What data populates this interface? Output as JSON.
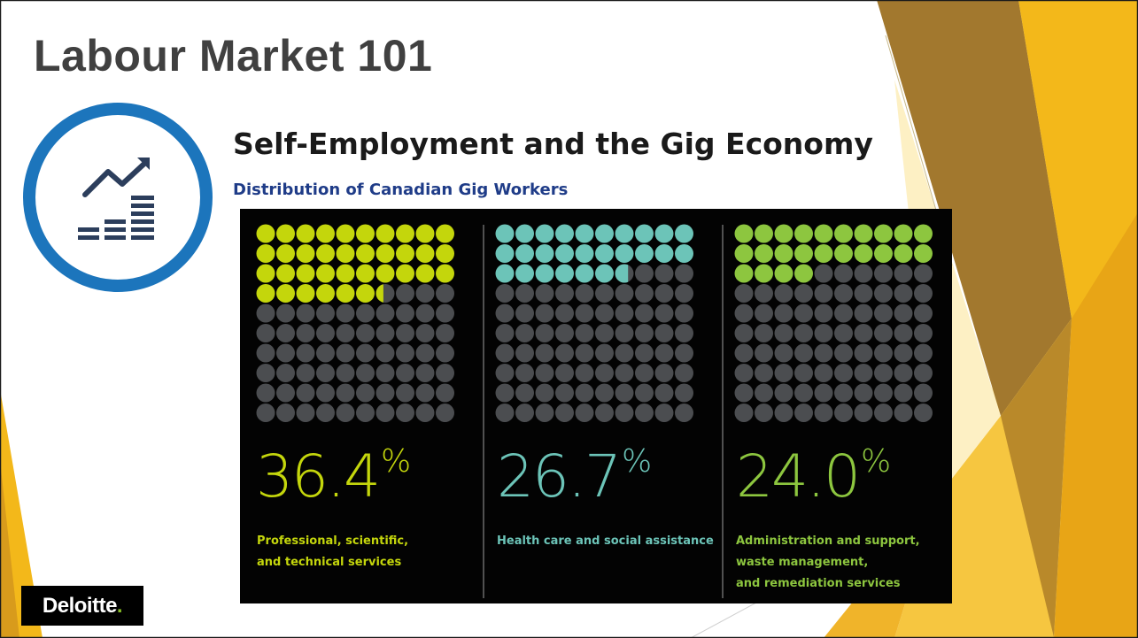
{
  "slide": {
    "title": "Labour Market 101",
    "subtitle": "Self-Employment and the Gig Economy",
    "section_heading": "Distribution of Canadian Gig Workers",
    "icon": "growth-chart-icon",
    "logo": {
      "text": "Deloitte",
      "dot": "."
    }
  },
  "colors": {
    "icon_ring": "#1c75bc",
    "icon_glyph": "#2c3e5c",
    "empty_dot": "#4b4d50",
    "panel_bg": "#030303",
    "accent_yellow": "#f4c21b",
    "accent_gold": "#a07a2e"
  },
  "chart_data": {
    "type": "waffle",
    "title": "Distribution of Canadian Gig Workers",
    "grid": {
      "rows": 10,
      "cols": 10
    },
    "unit": "%",
    "series": [
      {
        "value": 36.4,
        "value_label": "36.4",
        "label": "Professional, scientific,\nand technical services",
        "color": "#c4d60c"
      },
      {
        "value": 26.7,
        "value_label": "26.7",
        "label": "Health care and social assistance",
        "color": "#6cc4b8"
      },
      {
        "value": 24.0,
        "value_label": "24.0",
        "label": "Administration and support,\nwaste management,\nand remediation services",
        "color": "#8dc63f"
      }
    ]
  }
}
